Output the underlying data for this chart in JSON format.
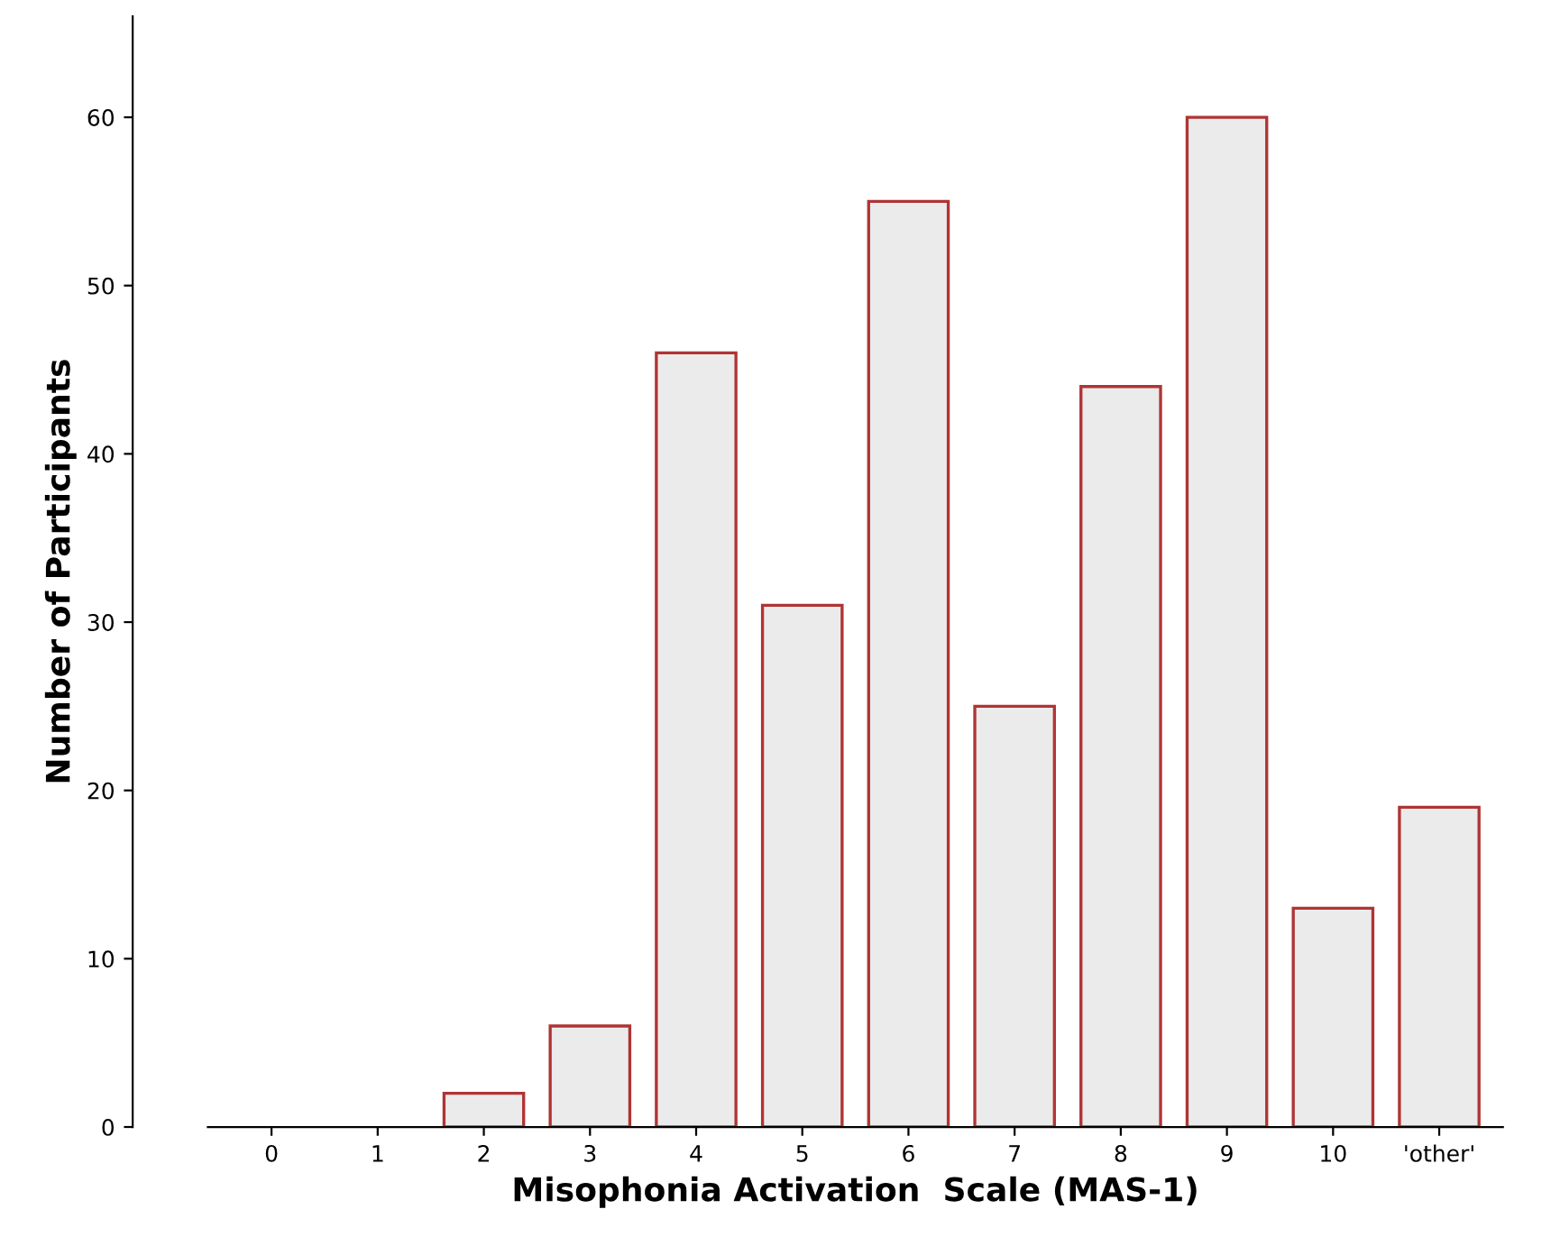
{
  "chart_data": {
    "type": "bar",
    "xlabel": "Misophonia Activation  Scale (MAS-1)",
    "ylabel": "Number of Participants",
    "categories": [
      "0",
      "1",
      "2",
      "3",
      "4",
      "5",
      "6",
      "7",
      "8",
      "9",
      "10",
      "'other'"
    ],
    "values": [
      0,
      0,
      2,
      6,
      46,
      31,
      55,
      25,
      44,
      60,
      13,
      19
    ],
    "color": "#ebebeb",
    "ylim": [
      0,
      66
    ],
    "yticks": [
      0,
      10,
      20,
      30,
      40,
      50,
      60
    ],
    "grid": false
  }
}
